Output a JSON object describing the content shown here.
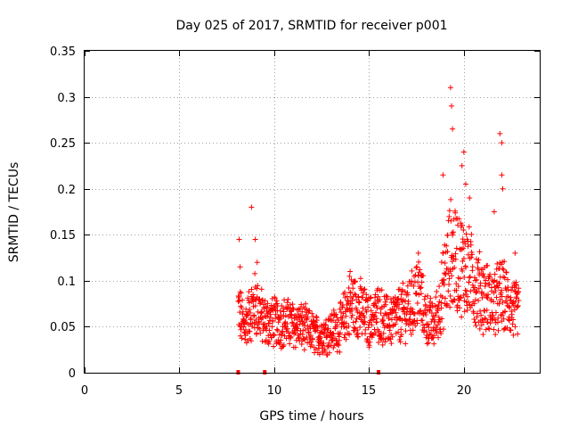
{
  "chart_data": {
    "type": "scatter",
    "title": "Day 025 of 2017, SRMTID for receiver p001",
    "xlabel": "GPS time / hours",
    "ylabel": "SRMTID / TECUs",
    "xlim": [
      0,
      24
    ],
    "ylim": [
      0,
      0.35
    ],
    "xticks": [
      0,
      5,
      10,
      15,
      20
    ],
    "yticks": [
      0,
      0.05,
      0.1,
      0.15,
      0.2,
      0.25,
      0.3,
      0.35
    ],
    "xtick_labels": [
      "0",
      "5",
      "10",
      "15",
      "20"
    ],
    "ytick_labels": [
      "0",
      "0.05",
      "0.1",
      "0.15",
      "0.2",
      "0.25",
      "0.3",
      "0.35"
    ],
    "grid": true,
    "marker": "+",
    "marker_color": "#ff0000",
    "baseline_markers": [
      8.1,
      9.5,
      15.5
    ],
    "series": [
      {
        "name": "SRMTID",
        "x_range": [
          8.1,
          22.9
        ],
        "approx_mean": 0.06,
        "notable_points": [
          {
            "x": 8.15,
            "y": 0.145
          },
          {
            "x": 8.2,
            "y": 0.115
          },
          {
            "x": 8.8,
            "y": 0.18
          },
          {
            "x": 9.0,
            "y": 0.145
          },
          {
            "x": 9.1,
            "y": 0.12
          },
          {
            "x": 14.0,
            "y": 0.11
          },
          {
            "x": 17.6,
            "y": 0.13
          },
          {
            "x": 18.9,
            "y": 0.215
          },
          {
            "x": 19.3,
            "y": 0.31
          },
          {
            "x": 19.35,
            "y": 0.29
          },
          {
            "x": 19.4,
            "y": 0.265
          },
          {
            "x": 19.9,
            "y": 0.225
          },
          {
            "x": 20.0,
            "y": 0.24
          },
          {
            "x": 20.1,
            "y": 0.205
          },
          {
            "x": 20.3,
            "y": 0.19
          },
          {
            "x": 21.6,
            "y": 0.175
          },
          {
            "x": 21.9,
            "y": 0.26
          },
          {
            "x": 22.0,
            "y": 0.25
          },
          {
            "x": 22.0,
            "y": 0.215
          },
          {
            "x": 22.05,
            "y": 0.2
          },
          {
            "x": 22.7,
            "y": 0.13
          }
        ]
      }
    ]
  }
}
